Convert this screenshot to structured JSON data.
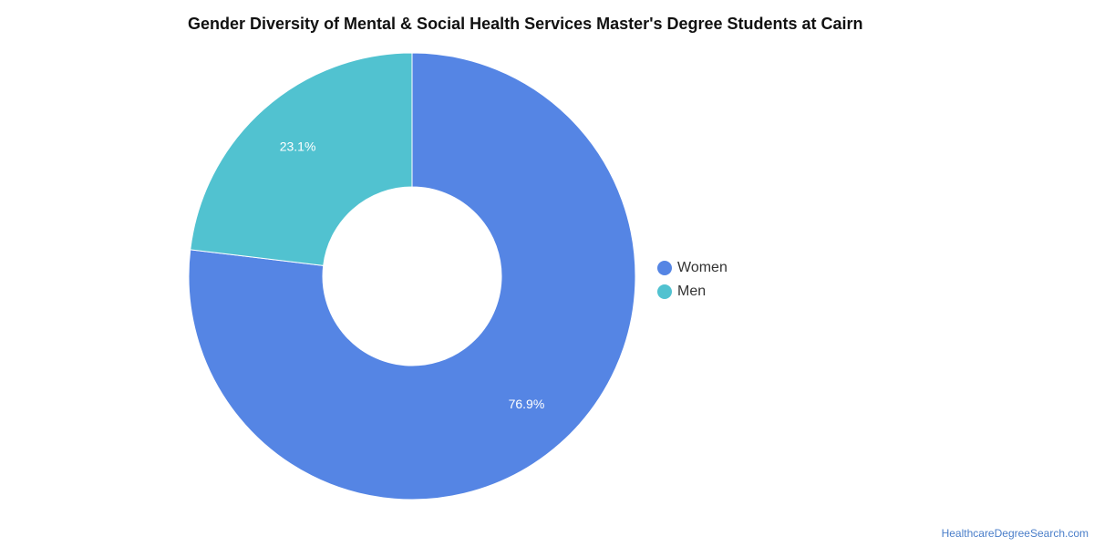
{
  "chart_data": {
    "type": "pie",
    "variant": "donut",
    "title": "Gender Diversity of Mental & Social Health Services Master's Degree Students at Cairn",
    "categories": [
      "Women",
      "Men"
    ],
    "values": [
      76.9,
      23.1
    ],
    "value_labels": [
      "76.9%",
      "23.1%"
    ],
    "colors": [
      "#5585e4",
      "#51c2d0"
    ],
    "legend_position": "right"
  },
  "footer": {
    "source": "HealthcareDegreeSearch.com"
  }
}
